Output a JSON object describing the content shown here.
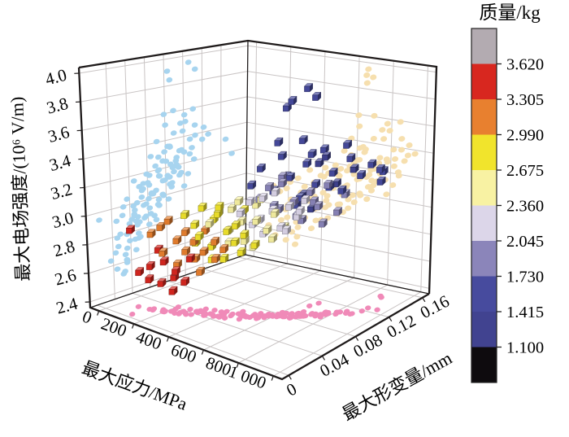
{
  "figure": {
    "background": "#ffffff"
  },
  "colorbar": {
    "title": "质量/kg",
    "tick_labels": [
      "3.620",
      "3.305",
      "2.990",
      "2.675",
      "2.360",
      "2.045",
      "1.730",
      "1.415",
      "1.100"
    ],
    "band_colors_top_to_bottom": [
      "#b3abb1",
      "#d8271f",
      "#e8802f",
      "#f1e42c",
      "#f8f2a3",
      "#dcd6e9",
      "#8b85ba",
      "#474b9e",
      "#414390",
      "#0e0b0e"
    ]
  },
  "chart_data": {
    "type": "scatter",
    "projection": "3d",
    "title": "",
    "legend_position": "right-colorbar",
    "grid": true,
    "axes": {
      "x": {
        "title": "最大应力/MPa",
        "ticks": [
          0,
          200,
          400,
          600,
          800,
          1000
        ],
        "tick_labels": [
          "0",
          "200",
          "400",
          "600",
          "800",
          "1 000"
        ],
        "range": [
          -50,
          1050
        ]
      },
      "y": {
        "title": "最大形变量/mm",
        "ticks": [
          0,
          0.04,
          0.08,
          0.12,
          0.16
        ],
        "tick_labels": [
          "0",
          "0.04",
          "0.08",
          "0.12",
          "0.16"
        ],
        "range": [
          -0.008,
          0.168
        ]
      },
      "z": {
        "title": "最大电场强度/(10⁶ V/m)",
        "ticks": [
          2.4,
          2.6,
          2.8,
          3.0,
          3.2,
          3.4,
          3.6,
          3.8,
          4.0
        ],
        "tick_labels": [
          "2.4",
          "2.6",
          "2.8",
          "3.0",
          "3.2",
          "3.4",
          "3.6",
          "3.8",
          "4.0"
        ],
        "range": [
          2.36,
          4.04
        ]
      }
    },
    "color_scale": {
      "variable": "质量/kg",
      "breaks_bottom_to_top": [
        1.1,
        1.415,
        1.73,
        2.045,
        2.36,
        2.675,
        2.99,
        3.305,
        3.62
      ],
      "band_colors_bottom_to_top": [
        "#0e0b0e",
        "#414390",
        "#474b9e",
        "#8b85ba",
        "#dcd6e9",
        "#f8f2a3",
        "#f1e42c",
        "#e8802f",
        "#d8271f",
        "#b3abb1"
      ]
    },
    "wall_grid": {
      "x_step": 200,
      "left_wall_y_step": 0.02,
      "floor_y_step": 0.04,
      "z_step": 0.2
    },
    "projection_colors": {
      "left_wall": "#a7d4ef",
      "right_wall": "#f6dfae",
      "floor": "#f08ab8"
    },
    "points_format": [
      "最大应力/MPa",
      "最大形变量/mm",
      "最大电场强度/(10^6 V/m)",
      "质量/kg"
    ],
    "points": [
      [
        100,
        0.02,
        2.62,
        3.55
      ],
      [
        130,
        0.025,
        2.57,
        3.48
      ],
      [
        155,
        0.022,
        2.68,
        3.52
      ],
      [
        175,
        0.03,
        2.55,
        3.42
      ],
      [
        205,
        0.028,
        2.72,
        3.38
      ],
      [
        225,
        0.035,
        2.6,
        3.45
      ],
      [
        250,
        0.032,
        2.66,
        3.35
      ],
      [
        270,
        0.038,
        2.58,
        3.4
      ],
      [
        295,
        0.04,
        2.75,
        3.33
      ],
      [
        240,
        0.03,
        2.52,
        3.5
      ],
      [
        185,
        0.026,
        2.8,
        3.36
      ],
      [
        120,
        0.008,
        2.95,
        3.44
      ],
      [
        150,
        0.025,
        2.9,
        3.25
      ],
      [
        180,
        0.03,
        2.95,
        3.18
      ],
      [
        200,
        0.028,
        2.78,
        3.22
      ],
      [
        220,
        0.04,
        2.85,
        3.1
      ],
      [
        245,
        0.035,
        2.7,
        3.05
      ],
      [
        260,
        0.042,
        2.92,
        3.15
      ],
      [
        280,
        0.038,
        2.8,
        3.0
      ],
      [
        300,
        0.045,
        2.74,
        3.08
      ],
      [
        320,
        0.04,
        2.88,
        3.12
      ],
      [
        345,
        0.048,
        2.95,
        3.02
      ],
      [
        365,
        0.042,
        2.82,
        3.2
      ],
      [
        390,
        0.05,
        2.76,
        3.05
      ],
      [
        410,
        0.046,
        2.9,
        3.0
      ],
      [
        430,
        0.052,
        2.84,
        3.1
      ],
      [
        210,
        0.033,
        3.0,
        3.28
      ],
      [
        330,
        0.044,
        2.66,
        3.18
      ],
      [
        270,
        0.04,
        3.05,
        2.95
      ],
      [
        300,
        0.045,
        2.98,
        2.88
      ],
      [
        320,
        0.05,
        3.1,
        2.8
      ],
      [
        340,
        0.042,
        2.92,
        2.92
      ],
      [
        360,
        0.055,
        3.02,
        2.85
      ],
      [
        380,
        0.048,
        2.85,
        2.78
      ],
      [
        400,
        0.052,
        3.08,
        2.9
      ],
      [
        420,
        0.058,
        2.95,
        2.82
      ],
      [
        440,
        0.05,
        2.78,
        2.75
      ],
      [
        460,
        0.06,
        3.0,
        2.88
      ],
      [
        480,
        0.055,
        2.9,
        2.7
      ],
      [
        500,
        0.062,
        3.12,
        2.78
      ],
      [
        520,
        0.058,
        2.96,
        2.85
      ],
      [
        545,
        0.065,
        2.88,
        2.72
      ],
      [
        430,
        0.048,
        3.15,
        2.95
      ],
      [
        370,
        0.05,
        2.75,
        2.7
      ],
      [
        490,
        0.06,
        2.82,
        2.92
      ],
      [
        310,
        0.044,
        2.86,
        2.76
      ],
      [
        360,
        0.05,
        3.0,
        2.6
      ],
      [
        390,
        0.055,
        3.08,
        2.52
      ],
      [
        420,
        0.06,
        2.95,
        2.45
      ],
      [
        450,
        0.058,
        3.12,
        2.55
      ],
      [
        470,
        0.065,
        3.02,
        2.4
      ],
      [
        500,
        0.062,
        2.9,
        2.48
      ],
      [
        530,
        0.07,
        3.15,
        2.58
      ],
      [
        550,
        0.066,
        3.05,
        2.42
      ],
      [
        580,
        0.072,
        2.98,
        2.5
      ],
      [
        610,
        0.075,
        3.1,
        2.62
      ],
      [
        640,
        0.08,
        3.0,
        2.45
      ],
      [
        480,
        0.06,
        3.18,
        2.65
      ],
      [
        520,
        0.068,
        2.85,
        2.38
      ],
      [
        560,
        0.07,
        3.2,
        2.55
      ],
      [
        600,
        0.074,
        2.92,
        2.4
      ],
      [
        440,
        0.056,
        2.88,
        2.58
      ],
      [
        490,
        0.06,
        3.1,
        2.3
      ],
      [
        520,
        0.065,
        3.18,
        2.2
      ],
      [
        550,
        0.07,
        3.05,
        2.1
      ],
      [
        580,
        0.068,
        3.22,
        2.25
      ],
      [
        600,
        0.075,
        3.12,
        2.15
      ],
      [
        630,
        0.078,
        3.0,
        2.05
      ],
      [
        660,
        0.082,
        3.15,
        2.28
      ],
      [
        690,
        0.085,
        3.08,
        2.12
      ],
      [
        720,
        0.088,
        3.2,
        2.18
      ],
      [
        560,
        0.072,
        2.95,
        2.08
      ],
      [
        610,
        0.076,
        3.25,
        2.32
      ],
      [
        650,
        0.08,
        2.98,
        2.22
      ],
      [
        700,
        0.086,
        3.12,
        2.06
      ],
      [
        530,
        0.066,
        3.02,
        2.16
      ],
      [
        550,
        0.07,
        3.2,
        1.95
      ],
      [
        580,
        0.075,
        3.28,
        1.85
      ],
      [
        610,
        0.08,
        3.12,
        1.78
      ],
      [
        640,
        0.078,
        3.32,
        1.9
      ],
      [
        670,
        0.085,
        3.18,
        1.82
      ],
      [
        700,
        0.088,
        3.05,
        1.75
      ],
      [
        730,
        0.092,
        3.25,
        1.98
      ],
      [
        760,
        0.095,
        3.15,
        1.88
      ],
      [
        790,
        0.1,
        3.3,
        1.8
      ],
      [
        820,
        0.105,
        3.1,
        1.92
      ],
      [
        840,
        0.11,
        3.22,
        1.76
      ],
      [
        620,
        0.082,
        3.35,
        2.0
      ],
      [
        680,
        0.086,
        3.08,
        1.84
      ],
      [
        740,
        0.094,
        3.18,
        1.94
      ],
      [
        770,
        0.098,
        3.02,
        1.78
      ],
      [
        600,
        0.076,
        3.15,
        1.88
      ],
      [
        530,
        0.065,
        3.3,
        1.7
      ],
      [
        560,
        0.07,
        3.42,
        1.6
      ],
      [
        590,
        0.078,
        3.25,
        1.52
      ],
      [
        620,
        0.082,
        3.5,
        1.65
      ],
      [
        650,
        0.085,
        3.35,
        1.55
      ],
      [
        680,
        0.09,
        3.2,
        1.48
      ],
      [
        710,
        0.092,
        3.45,
        1.68
      ],
      [
        740,
        0.096,
        3.3,
        1.58
      ],
      [
        770,
        0.1,
        3.55,
        1.5
      ],
      [
        800,
        0.104,
        3.38,
        1.62
      ],
      [
        830,
        0.108,
        3.25,
        1.45
      ],
      [
        860,
        0.112,
        3.48,
        1.55
      ],
      [
        890,
        0.118,
        3.35,
        1.66
      ],
      [
        920,
        0.124,
        3.42,
        1.58
      ],
      [
        610,
        0.08,
        3.6,
        1.7
      ],
      [
        670,
        0.088,
        3.15,
        1.44
      ],
      [
        730,
        0.094,
        3.52,
        1.63
      ],
      [
        790,
        0.102,
        3.28,
        1.47
      ],
      [
        850,
        0.11,
        3.58,
        1.68
      ],
      [
        640,
        0.084,
        3.85,
        1.52
      ],
      [
        660,
        0.086,
        3.9,
        1.6
      ],
      [
        700,
        0.09,
        3.62,
        1.55
      ],
      [
        650,
        0.105,
        3.95,
        1.55
      ],
      [
        670,
        0.11,
        3.88,
        1.5
      ],
      [
        950,
        0.128,
        3.38,
        1.56
      ],
      [
        880,
        0.145,
        3.3,
        1.62
      ],
      [
        840,
        0.15,
        3.2,
        1.48
      ],
      [
        630,
        0.085,
        3.35,
        1.35
      ],
      [
        690,
        0.092,
        3.22,
        1.28
      ],
      [
        750,
        0.098,
        3.45,
        1.2
      ],
      [
        810,
        0.106,
        3.3,
        1.32
      ],
      [
        870,
        0.114,
        3.4,
        1.25
      ],
      [
        720,
        0.095,
        3.12,
        1.38
      ],
      [
        780,
        0.1,
        3.5,
        1.15
      ]
    ]
  }
}
